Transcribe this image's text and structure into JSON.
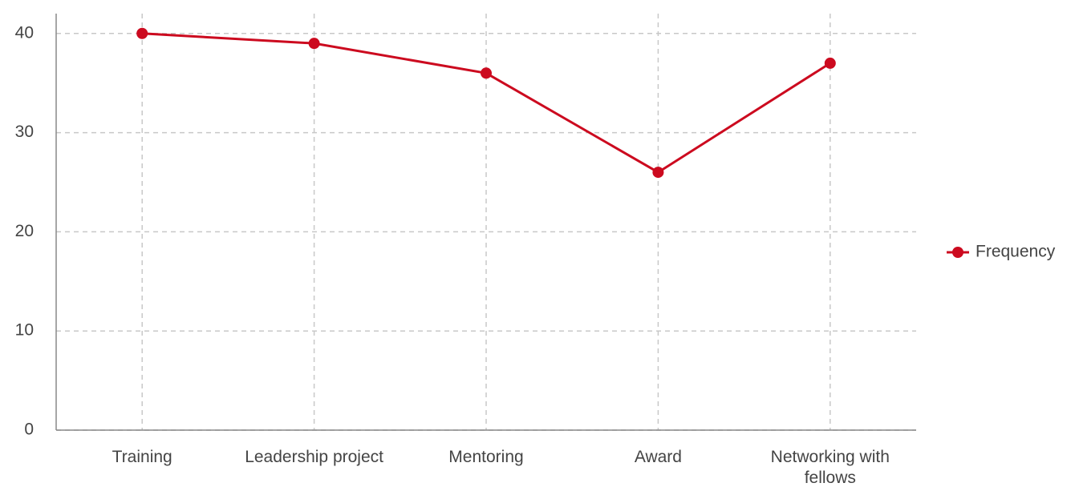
{
  "chart_data": {
    "type": "line",
    "categories": [
      "Training",
      "Leadership project",
      "Mentoring",
      "Award",
      "Networking with fellows"
    ],
    "series": [
      {
        "name": "Frequency",
        "color": "#cc0a1f",
        "values": [
          40,
          39,
          36,
          26,
          37
        ]
      }
    ],
    "ylim": [
      0,
      42
    ],
    "yticks": [
      0,
      10,
      20,
      30,
      40
    ],
    "grid": true,
    "legend": "right"
  }
}
